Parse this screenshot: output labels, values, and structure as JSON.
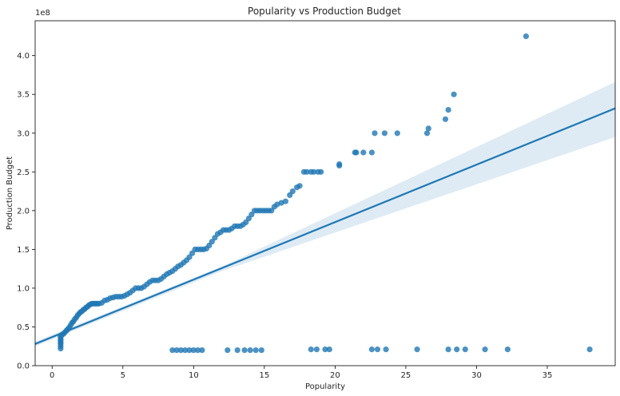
{
  "chart_data": {
    "type": "scatter",
    "title": "Popularity vs Production Budget",
    "xlabel": "Popularity",
    "ylabel": "Production Budget",
    "y_offset_label": "1e8",
    "xlim": [
      -1.2,
      39.8
    ],
    "ylim": [
      0,
      4.45
    ],
    "x_ticks": [
      0,
      5,
      10,
      15,
      20,
      25,
      30,
      35
    ],
    "x_tick_labels": [
      "0",
      "5",
      "10",
      "15",
      "20",
      "25",
      "30",
      "35"
    ],
    "y_ticks": [
      0,
      0.5,
      1.0,
      1.5,
      2.0,
      2.5,
      3.0,
      3.5,
      4.0
    ],
    "y_tick_labels": [
      "0.0",
      "0.5",
      "1.0",
      "1.5",
      "2.0",
      "2.5",
      "3.0",
      "3.5",
      "4.0"
    ],
    "y_units": "1e8",
    "grid": false,
    "colors": {
      "points": "#1f77b4",
      "line": "#1f77b4",
      "band": "#1f77b4"
    },
    "series": [
      {
        "x": [
          0.6,
          0.6,
          0.6,
          0.6,
          0.6,
          0.6,
          0.6,
          0.6,
          0.7,
          0.8,
          0.9,
          1.0,
          1.1,
          1.2,
          1.3,
          1.4,
          1.5,
          1.6,
          1.7,
          1.8,
          1.9,
          2.0,
          2.1,
          2.2,
          2.3,
          2.4,
          2.5,
          2.6,
          2.7,
          2.8,
          2.9,
          3.0,
          3.1,
          3.2,
          3.3,
          3.5,
          3.7,
          3.9,
          4.1,
          4.3,
          4.5,
          4.7,
          4.9,
          5.1,
          5.3,
          5.5,
          5.7,
          5.9,
          6.1,
          6.3,
          6.5,
          6.7,
          6.9,
          7.1,
          7.3,
          7.5,
          7.7,
          7.9,
          8.1,
          8.3,
          8.5,
          8.7,
          8.9,
          9.1,
          9.3,
          9.5,
          9.7,
          9.9,
          10.1,
          10.3,
          10.5,
          10.7,
          10.9,
          11.1,
          11.3,
          11.5,
          11.7,
          11.9,
          12.1,
          12.3,
          12.5,
          12.7,
          12.9,
          13.1,
          13.3,
          13.5,
          13.7,
          13.9,
          14.1,
          14.3,
          14.5,
          14.7,
          14.9,
          15.1,
          15.3,
          15.5,
          15.7,
          15.9,
          16.2,
          16.5,
          16.8,
          17.0,
          17.3,
          17.5,
          17.8,
          18.0,
          18.3,
          18.5,
          18.8,
          19.0,
          20.3,
          20.3,
          21.4,
          21.5,
          22.0,
          22.6,
          22.8,
          23.5,
          24.4,
          26.5,
          26.6,
          27.8,
          28.0,
          28.4,
          33.5,
          8.5,
          8.8,
          9.1,
          9.4,
          9.7,
          10.0,
          10.3,
          10.6,
          12.4,
          13.1,
          13.6,
          14.0,
          14.4,
          14.8,
          18.3,
          18.7,
          19.3,
          19.6,
          22.6,
          23.0,
          23.6,
          25.8,
          28.0,
          28.6,
          29.2,
          30.6,
          32.2,
          38.0
        ],
        "y": [
          0.22,
          0.25,
          0.28,
          0.3,
          0.32,
          0.34,
          0.36,
          0.38,
          0.4,
          0.41,
          0.43,
          0.45,
          0.47,
          0.49,
          0.52,
          0.55,
          0.57,
          0.6,
          0.62,
          0.65,
          0.67,
          0.69,
          0.7,
          0.72,
          0.73,
          0.75,
          0.76,
          0.78,
          0.79,
          0.8,
          0.8,
          0.8,
          0.8,
          0.8,
          0.8,
          0.81,
          0.84,
          0.85,
          0.87,
          0.88,
          0.89,
          0.89,
          0.89,
          0.9,
          0.92,
          0.94,
          0.97,
          1.0,
          1.0,
          1.0,
          1.02,
          1.05,
          1.08,
          1.1,
          1.1,
          1.1,
          1.12,
          1.15,
          1.18,
          1.2,
          1.22,
          1.25,
          1.28,
          1.3,
          1.33,
          1.36,
          1.4,
          1.45,
          1.5,
          1.5,
          1.5,
          1.5,
          1.51,
          1.55,
          1.6,
          1.65,
          1.7,
          1.72,
          1.75,
          1.75,
          1.75,
          1.77,
          1.8,
          1.8,
          1.8,
          1.82,
          1.85,
          1.9,
          1.95,
          2.0,
          2.0,
          2.0,
          2.0,
          2.0,
          2.0,
          2.0,
          2.05,
          2.08,
          2.1,
          2.12,
          2.2,
          2.25,
          2.3,
          2.32,
          2.5,
          2.5,
          2.5,
          2.5,
          2.5,
          2.5,
          2.6,
          2.58,
          2.75,
          2.75,
          2.75,
          2.75,
          3.0,
          3.0,
          3.0,
          3.0,
          3.06,
          3.18,
          3.3,
          3.5,
          4.25,
          0.2,
          0.2,
          0.2,
          0.2,
          0.2,
          0.2,
          0.2,
          0.2,
          0.2,
          0.2,
          0.2,
          0.2,
          0.2,
          0.2,
          0.21,
          0.21,
          0.21,
          0.21,
          0.21,
          0.21,
          0.21,
          0.21,
          0.21,
          0.21,
          0.21,
          0.21,
          0.21,
          0.21
        ]
      }
    ],
    "regression": {
      "x": [
        -1.2,
        39.8
      ],
      "y": [
        0.28,
        3.32
      ],
      "ci_lower": [
        0.25,
        2.95
      ],
      "ci_upper": [
        0.31,
        3.66
      ],
      "ci_mid_x": 12.0,
      "ci_mid_lower": 1.22,
      "ci_mid_upper": 1.28
    }
  }
}
